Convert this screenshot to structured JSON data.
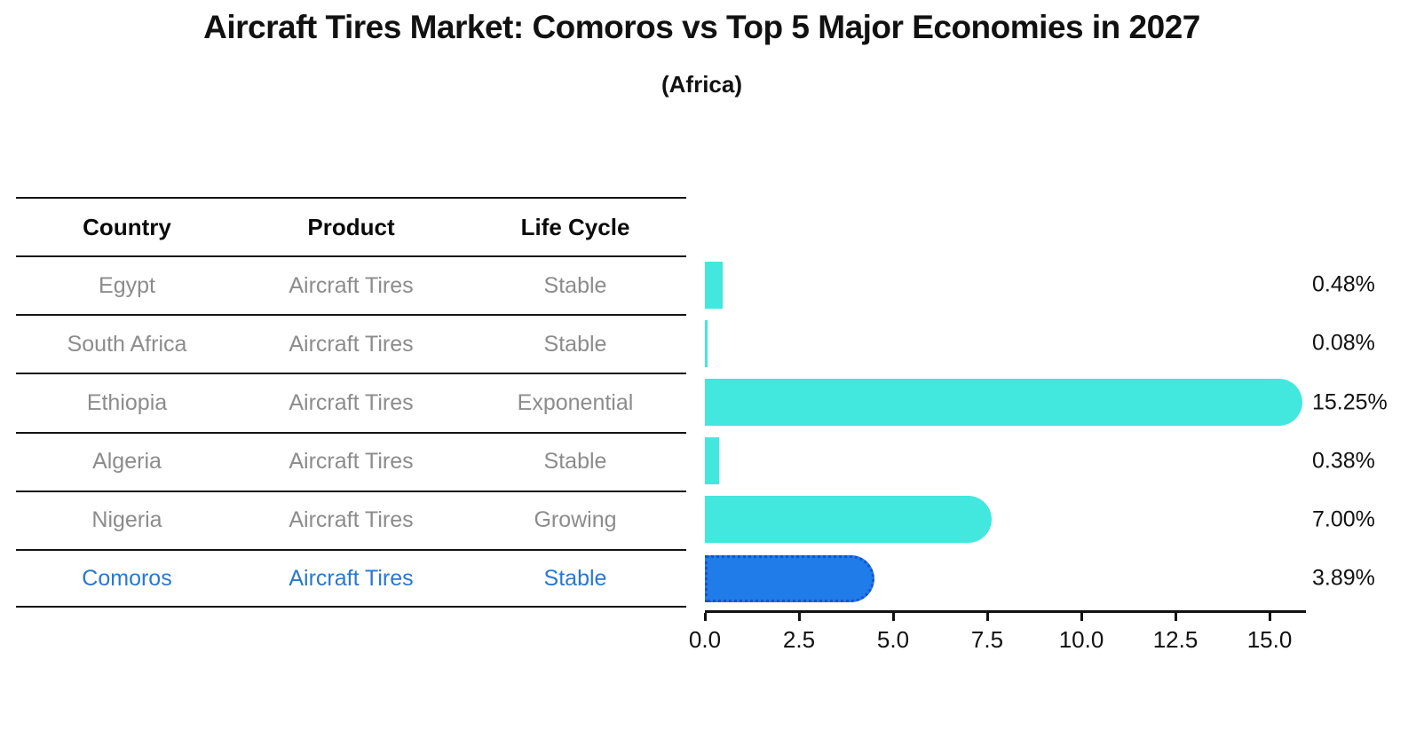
{
  "title": "Aircraft Tires Market: Comoros vs Top 5 Major Economies in 2027",
  "subtitle": "(Africa)",
  "table": {
    "headers": [
      "Country",
      "Product",
      "Life Cycle"
    ],
    "rows": [
      {
        "country": "Egypt",
        "product": "Aircraft Tires",
        "life_cycle": "Stable",
        "highlight": false
      },
      {
        "country": "South Africa",
        "product": "Aircraft Tires",
        "life_cycle": "Stable",
        "highlight": false
      },
      {
        "country": "Ethiopia",
        "product": "Aircraft Tires",
        "life_cycle": "Exponential",
        "highlight": false
      },
      {
        "country": "Algeria",
        "product": "Aircraft Tires",
        "life_cycle": "Stable",
        "highlight": false
      },
      {
        "country": "Nigeria",
        "product": "Aircraft Tires",
        "life_cycle": "Growing",
        "highlight": false
      },
      {
        "country": "Comoros",
        "product": "Aircraft Tires",
        "life_cycle": "Stable",
        "highlight": true
      }
    ]
  },
  "chart_data": {
    "type": "bar",
    "orientation": "horizontal",
    "title": "Aircraft Tires Market: Comoros vs Top 5 Major Economies in 2027",
    "subtitle": "(Africa)",
    "categories": [
      "Egypt",
      "South Africa",
      "Ethiopia",
      "Algeria",
      "Nigeria",
      "Comoros"
    ],
    "values": [
      0.48,
      0.08,
      15.25,
      0.38,
      7.0,
      3.89
    ],
    "value_labels": [
      "0.48%",
      "0.08%",
      "15.25%",
      "0.38%",
      "7.00%",
      "3.89%"
    ],
    "xticks": [
      "0.0",
      "2.5",
      "5.0",
      "7.5",
      "10.0",
      "12.5",
      "15.0"
    ],
    "xlim": [
      0,
      16
    ],
    "grid": "off",
    "legend": "none",
    "bar_color": "#42e7de",
    "highlight_index": 5,
    "highlight_color": "#1f7ce8",
    "highlight_border_color": "#1a4fd6",
    "highlight_border_style": "dotted",
    "text_color": "#111111",
    "muted_text_color": "#8c8c8c",
    "highlight_text_color": "#2878d0"
  }
}
